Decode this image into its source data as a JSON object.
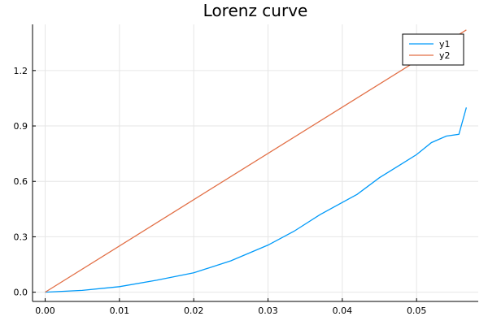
{
  "chart_data": {
    "type": "line",
    "title": "Lorenz curve",
    "xlabel": "",
    "ylabel": "",
    "xlim": [
      -0.0017,
      0.0583
    ],
    "ylim": [
      -0.05,
      1.45
    ],
    "x_ticks": [
      0.0,
      0.01,
      0.02,
      0.03,
      0.04,
      0.05
    ],
    "x_tick_labels": [
      "0.00",
      "0.01",
      "0.02",
      "0.03",
      "0.04",
      "0.05"
    ],
    "y_ticks": [
      0.0,
      0.3,
      0.6,
      0.9,
      1.2
    ],
    "y_tick_labels": [
      "0.0",
      "0.3",
      "0.6",
      "0.9",
      "1.2"
    ],
    "grid": true,
    "legend_position": "top-right",
    "series": [
      {
        "name": "y1",
        "color": "#009af9",
        "x": [
          0.0,
          0.005,
          0.01,
          0.015,
          0.02,
          0.025,
          0.03,
          0.0335,
          0.037,
          0.042,
          0.045,
          0.048,
          0.05,
          0.052,
          0.054,
          0.0557,
          0.0567
        ],
        "y": [
          0.0,
          0.01,
          0.03,
          0.065,
          0.105,
          0.17,
          0.255,
          0.33,
          0.42,
          0.53,
          0.62,
          0.695,
          0.745,
          0.81,
          0.845,
          0.855,
          1.0
        ]
      },
      {
        "name": "y2",
        "color": "#e26f46",
        "x": [
          0.0,
          0.0567
        ],
        "y": [
          0.0,
          1.42
        ]
      }
    ]
  }
}
